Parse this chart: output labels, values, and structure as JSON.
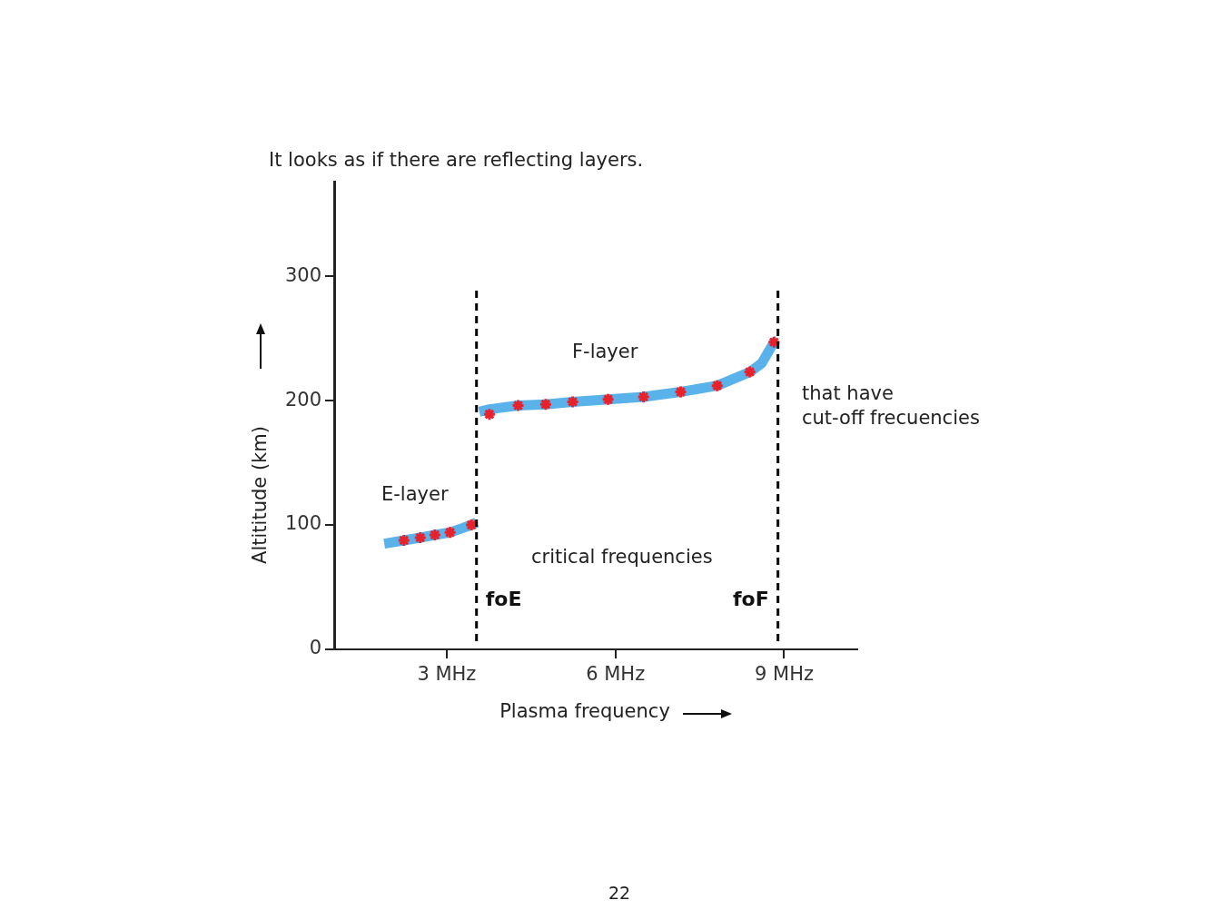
{
  "chart_data": {
    "type": "line",
    "title": "It looks as if there are reflecting layers.",
    "xlabel": "Plasma frequency",
    "ylabel": "Altititude (km)",
    "xlim": [
      1,
      10.3
    ],
    "xticks": [
      {
        "value": 3,
        "label": "3 MHz"
      },
      {
        "value": 6,
        "label": "6 MHz"
      },
      {
        "value": 9,
        "label": "9 MHz"
      }
    ],
    "ylim": [
      0,
      376
    ],
    "yticks": [
      0,
      100,
      200,
      300
    ],
    "grid": false,
    "legend": false,
    "series": [
      {
        "color": "#5ab2ea",
        "marker": "none",
        "x": [
          1.89,
          2.24,
          2.53,
          2.79,
          3.06,
          3.44,
          3.53,
          3.55,
          3.58,
          3.76,
          4.27,
          4.76,
          5.24,
          5.87,
          6.5,
          7.16,
          7.81,
          8.39,
          8.6,
          8.82,
          8.87
        ],
        "values": [
          85,
          87.6,
          89.8,
          92,
          94,
          100,
          102,
          null,
          191,
          193,
          196,
          197,
          199,
          201,
          203,
          207,
          212,
          223,
          230,
          247,
          248
        ]
      },
      {
        "type": "scatter",
        "color": "#e8212a",
        "marker": "cross",
        "x": [
          2.24,
          2.53,
          2.79,
          3.06,
          3.44,
          3.76,
          4.27,
          4.76,
          5.24,
          5.87,
          6.5,
          7.16,
          7.81,
          8.39,
          8.82
        ],
        "values": [
          87.6,
          89.8,
          92,
          94,
          100,
          189,
          196,
          197,
          199,
          201,
          203,
          207,
          212,
          223,
          247
        ]
      }
    ],
    "ref_lines": [
      {
        "axis": "x",
        "value": 3.53,
        "label": "foE",
        "line_style": "dashed",
        "color": "#000000"
      },
      {
        "axis": "x",
        "value": 8.89,
        "label": "foF",
        "line_style": "dashed",
        "color": "#000000"
      }
    ],
    "annotations": [
      "E-layer",
      "F-layer",
      "critical frequencies",
      "that have",
      "cut-off frecuencies",
      "22"
    ]
  }
}
